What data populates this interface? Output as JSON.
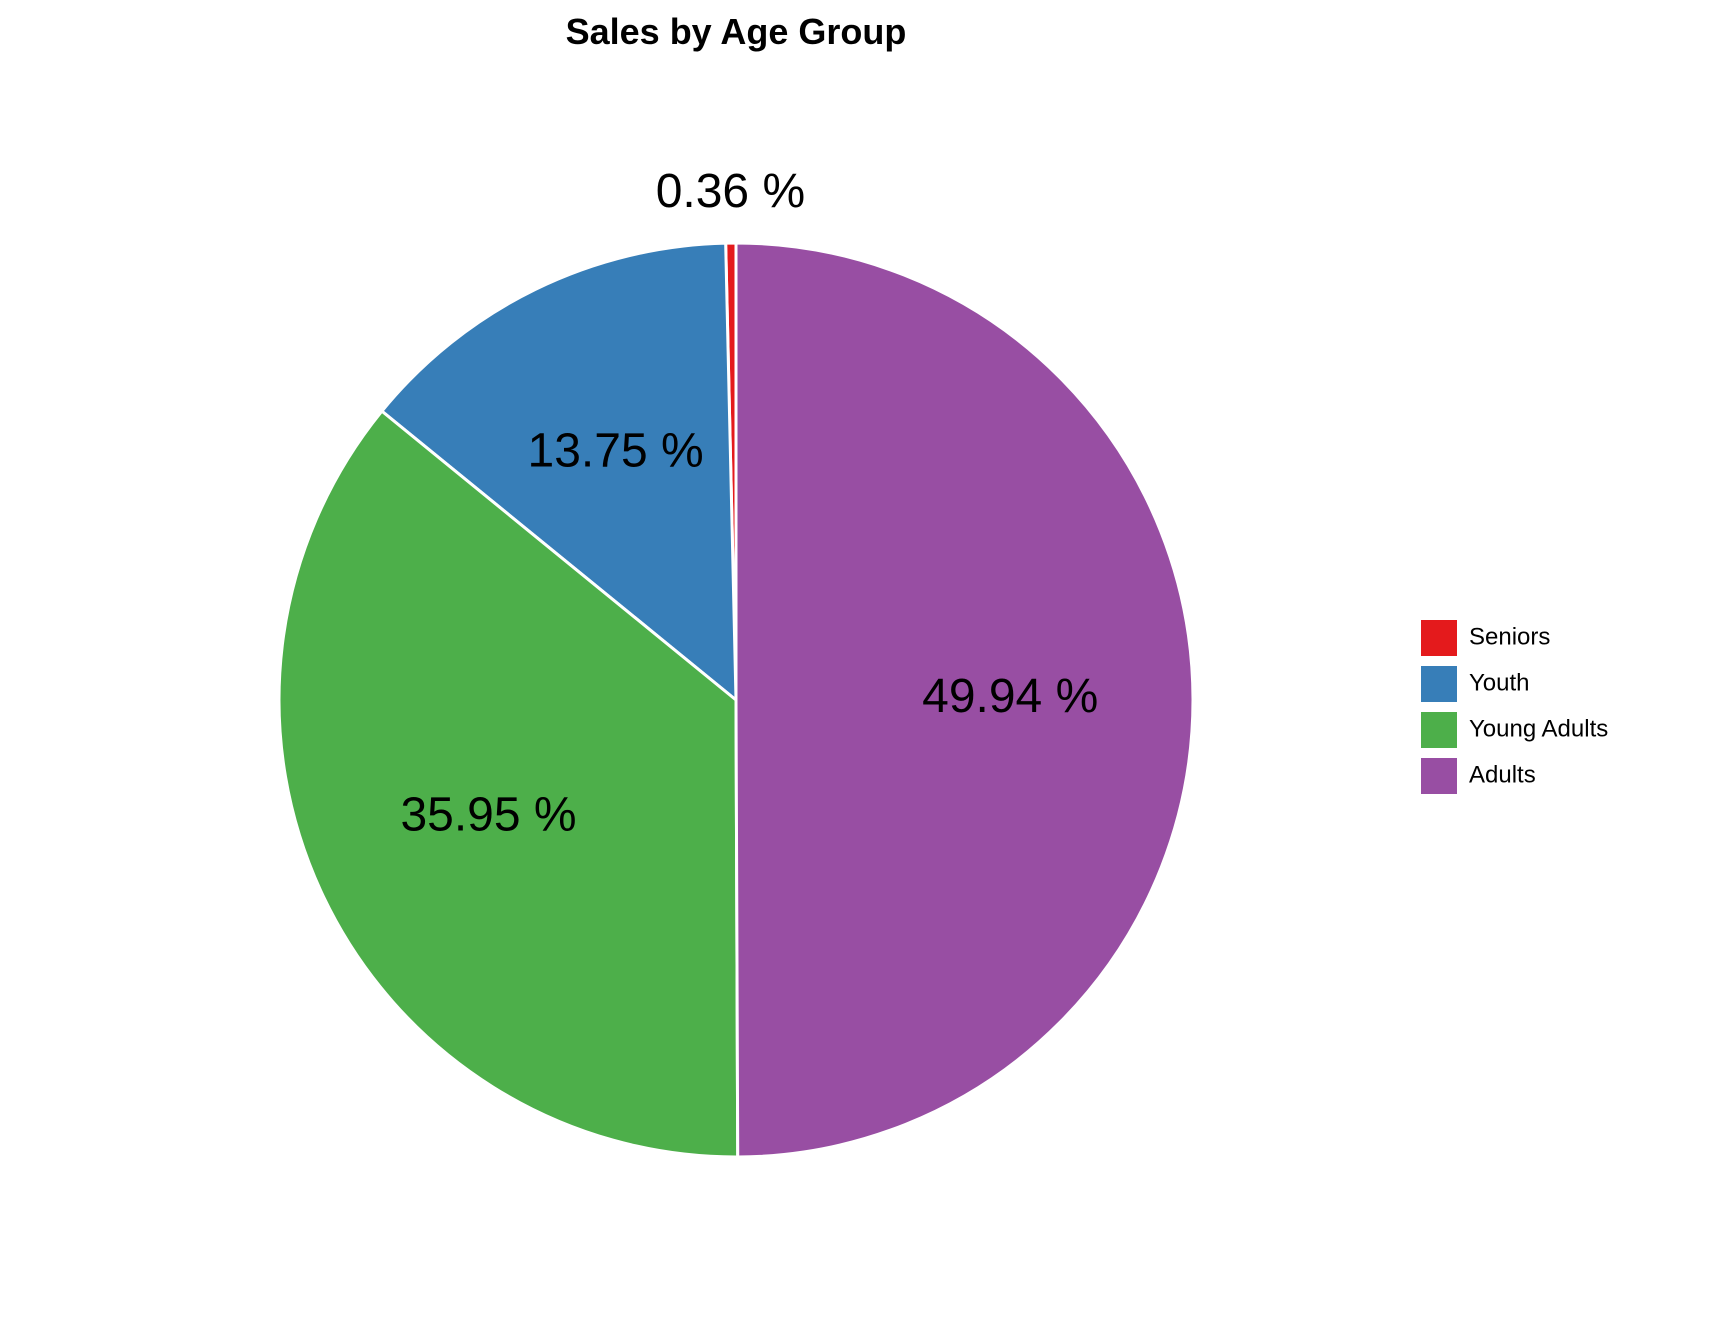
{
  "chart_data": {
    "type": "pie",
    "title": "Sales by Age Group",
    "slices": [
      {
        "name": "Seniors",
        "value": 0.36,
        "label": "0.36 %",
        "color": "#e41a1c"
      },
      {
        "name": "Youth",
        "value": 13.75,
        "label": "13.75 %",
        "color": "#377eb8"
      },
      {
        "name": "Young Adults",
        "value": 35.95,
        "label": "35.95 %",
        "color": "#4daf4a"
      },
      {
        "name": "Adults",
        "value": 49.94,
        "label": "49.94 %",
        "color": "#984ea3"
      }
    ],
    "direction": "counterclockwise",
    "start_angle": "top",
    "legend": {
      "position": "right",
      "items": [
        "Seniors",
        "Youth",
        "Young Adults",
        "Adults"
      ]
    }
  }
}
